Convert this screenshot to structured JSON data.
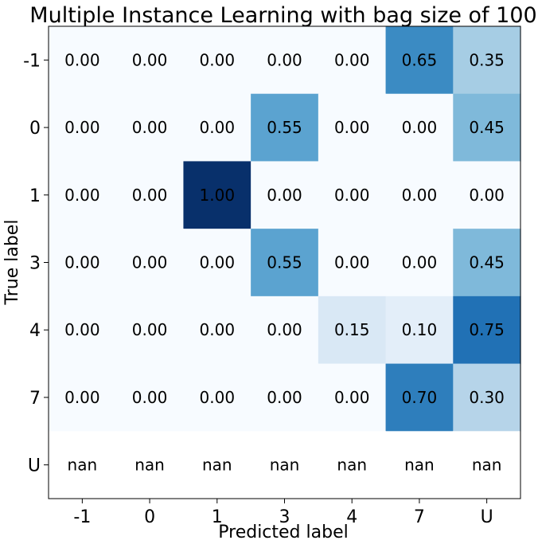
{
  "chart_data": {
    "type": "heatmap",
    "title": "Multiple Instance Learning with bag size of 100",
    "xlabel": "Predicted label",
    "ylabel": "True label",
    "x_categories": [
      "-1",
      "0",
      "1",
      "3",
      "4",
      "7",
      "U"
    ],
    "y_categories": [
      "-1",
      "0",
      "1",
      "3",
      "4",
      "7",
      "U"
    ],
    "values": [
      [
        0.0,
        0.0,
        0.0,
        0.0,
        0.0,
        0.65,
        0.35
      ],
      [
        0.0,
        0.0,
        0.0,
        0.55,
        0.0,
        0.0,
        0.45
      ],
      [
        0.0,
        0.0,
        1.0,
        0.0,
        0.0,
        0.0,
        0.0
      ],
      [
        0.0,
        0.0,
        0.0,
        0.55,
        0.0,
        0.0,
        0.45
      ],
      [
        0.0,
        0.0,
        0.0,
        0.0,
        0.15,
        0.1,
        0.75
      ],
      [
        0.0,
        0.0,
        0.0,
        0.0,
        0.0,
        0.7,
        0.3
      ],
      [
        null,
        null,
        null,
        null,
        null,
        null,
        null
      ]
    ],
    "cell_labels": [
      [
        "0.00",
        "0.00",
        "0.00",
        "0.00",
        "0.00",
        "0.65",
        "0.35"
      ],
      [
        "0.00",
        "0.00",
        "0.00",
        "0.55",
        "0.00",
        "0.00",
        "0.45"
      ],
      [
        "0.00",
        "0.00",
        "1.00",
        "0.00",
        "0.00",
        "0.00",
        "0.00"
      ],
      [
        "0.00",
        "0.00",
        "0.00",
        "0.55",
        "0.00",
        "0.00",
        "0.45"
      ],
      [
        "0.00",
        "0.00",
        "0.00",
        "0.00",
        "0.15",
        "0.10",
        "0.75"
      ],
      [
        "0.00",
        "0.00",
        "0.00",
        "0.00",
        "0.00",
        "0.70",
        "0.30"
      ],
      [
        "nan",
        "nan",
        "nan",
        "nan",
        "nan",
        "nan",
        "nan"
      ]
    ],
    "colormap": "Blues",
    "value_range": [
      0,
      1
    ],
    "grid": false,
    "colors": {
      "cell_min": "#f7fbff",
      "cell_max": "#08306b",
      "text_dark": "#000000",
      "text_light": "#ffffff",
      "nan_fill": "#ffffff",
      "frame": "#000000"
    }
  }
}
